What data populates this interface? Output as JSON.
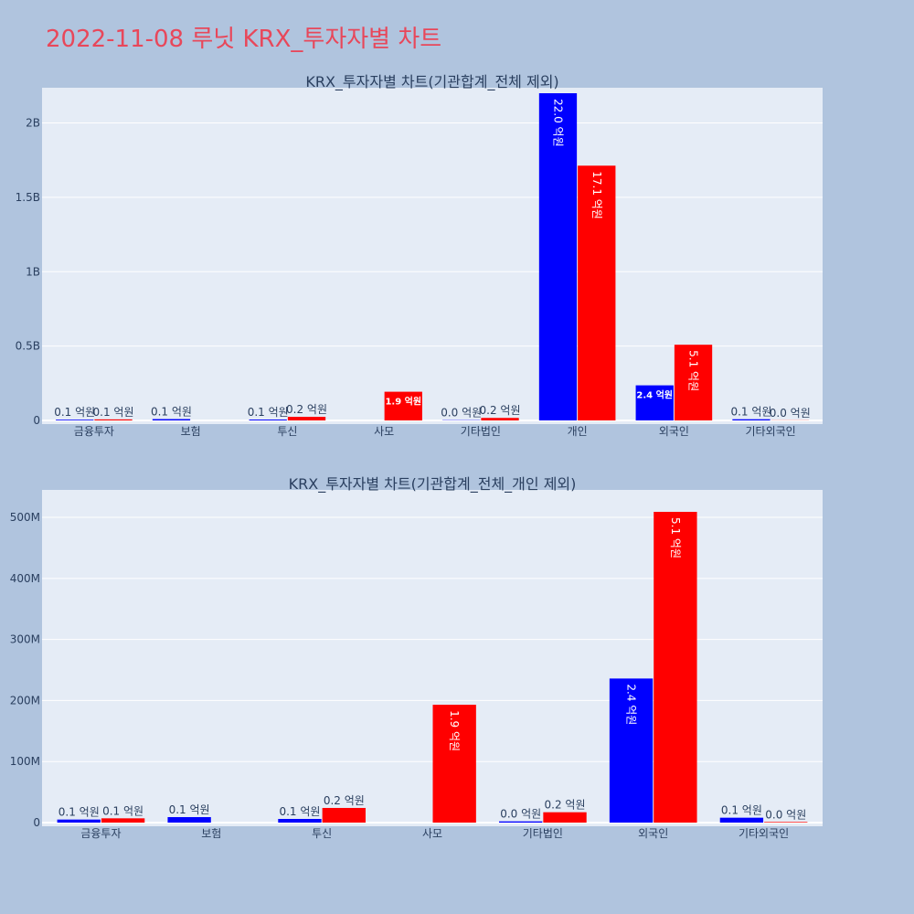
{
  "page": {
    "title": "2022-11-08 루닛 KRX_투자자별 차트"
  },
  "colors": {
    "buy": "#0000ff",
    "sell": "#ff0000",
    "plot_bg": "#e5ecf6",
    "paper_bg": "#b0c4de",
    "title": "#e8475a"
  },
  "chart_data": [
    {
      "type": "bar",
      "title": "KRX_투자자별 차트(기관합계_전체 제외)",
      "categories": [
        "금융투자",
        "보험",
        "투신",
        "사모",
        "기타법인",
        "개인",
        "외국인",
        "기타외국인"
      ],
      "series": [
        {
          "color": "#0000ff",
          "values": [
            5000000,
            9000000,
            6000000,
            0,
            2000000,
            2200000000,
            236000000,
            8000000
          ],
          "labels": [
            "0.1 억원",
            "0.1 억원",
            "0.1 억원",
            "",
            "0.0 억원",
            "22.0 억원",
            "2.4 억원",
            "0.1 억원"
          ]
        },
        {
          "color": "#ff0000",
          "values": [
            7000000,
            0,
            24000000,
            193000000,
            17000000,
            1713000000,
            509000000,
            1000000
          ],
          "labels": [
            "0.1 억원",
            "",
            "0.2 억원",
            "1.9 억원",
            "0.2 억원",
            "17.1 억원",
            "5.1 억원",
            "0.0 억원"
          ]
        }
      ],
      "ylim": [
        0,
        2200000000
      ],
      "yticks": [
        0,
        500000000,
        1000000000,
        1500000000,
        2000000000
      ],
      "yticklabels": [
        "0",
        "0.5B",
        "1B",
        "1.5B",
        "2B"
      ],
      "grid": true
    },
    {
      "type": "bar",
      "title": "KRX_투자자별 차트(기관합계_전체_개인 제외)",
      "categories": [
        "금융투자",
        "보험",
        "투신",
        "사모",
        "기타법인",
        "외국인",
        "기타외국인"
      ],
      "series": [
        {
          "color": "#0000ff",
          "values": [
            5000000,
            9000000,
            6000000,
            0,
            2000000,
            236000000,
            8000000
          ],
          "labels": [
            "0.1 억원",
            "0.1 억원",
            "0.1 억원",
            "",
            "0.0 억원",
            "2.4 억원",
            "0.1 억원"
          ]
        },
        {
          "color": "#ff0000",
          "values": [
            7000000,
            0,
            24000000,
            193000000,
            17000000,
            509000000,
            1000000
          ],
          "labels": [
            "0.1 억원",
            "",
            "0.2 억원",
            "1.9 억원",
            "0.2 억원",
            "5.1 억원",
            "0.0 억원"
          ]
        }
      ],
      "ylim": [
        0,
        536000000
      ],
      "yticks": [
        0,
        100000000,
        200000000,
        300000000,
        400000000,
        500000000
      ],
      "yticklabels": [
        "0",
        "100M",
        "200M",
        "300M",
        "400M",
        "500M"
      ],
      "grid": true
    }
  ]
}
